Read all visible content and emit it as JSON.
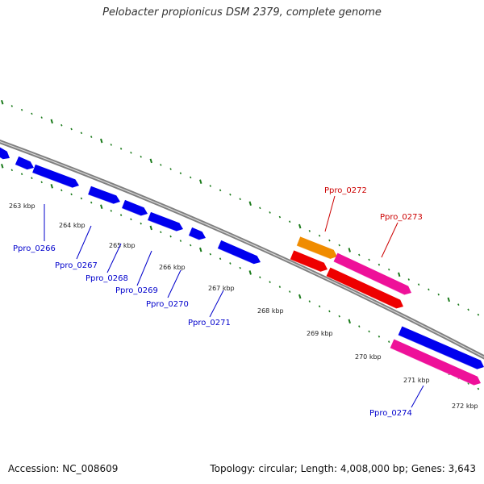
{
  "title": "Pelobacter propionicus DSM 2379, complete genome",
  "footer": {
    "accession": "Accession: NC_008609",
    "topology": "Topology: circular; Length: 4,008,000 bp; Genes: 3,643"
  },
  "colors": {
    "backbone": "#808080",
    "tick": "#1a7a1a",
    "gene_blue": "#0000ee",
    "gene_red": "#ee0000",
    "gene_orange": "#f08c00",
    "gene_pink": "#ee1199",
    "label_blue": "#0000cc",
    "label_red": "#cc0000"
  },
  "ticks": [
    "263 kbp",
    "264 kbp",
    "265 kbp",
    "266 kbp",
    "267 kbp",
    "268 kbp",
    "269 kbp",
    "270 kbp",
    "271 kbp",
    "272 kbp"
  ],
  "gene_labels": [
    {
      "text": "Ppro_0266",
      "color": "blue"
    },
    {
      "text": "Ppro_0267",
      "color": "blue"
    },
    {
      "text": "Ppro_0268",
      "color": "blue"
    },
    {
      "text": "Ppro_0269",
      "color": "blue"
    },
    {
      "text": "Ppro_0270",
      "color": "blue"
    },
    {
      "text": "Ppro_0271",
      "color": "blue"
    },
    {
      "text": "Ppro_0272",
      "color": "red"
    },
    {
      "text": "Ppro_0273",
      "color": "red"
    },
    {
      "text": "Ppro_0274",
      "color": "blue"
    }
  ]
}
